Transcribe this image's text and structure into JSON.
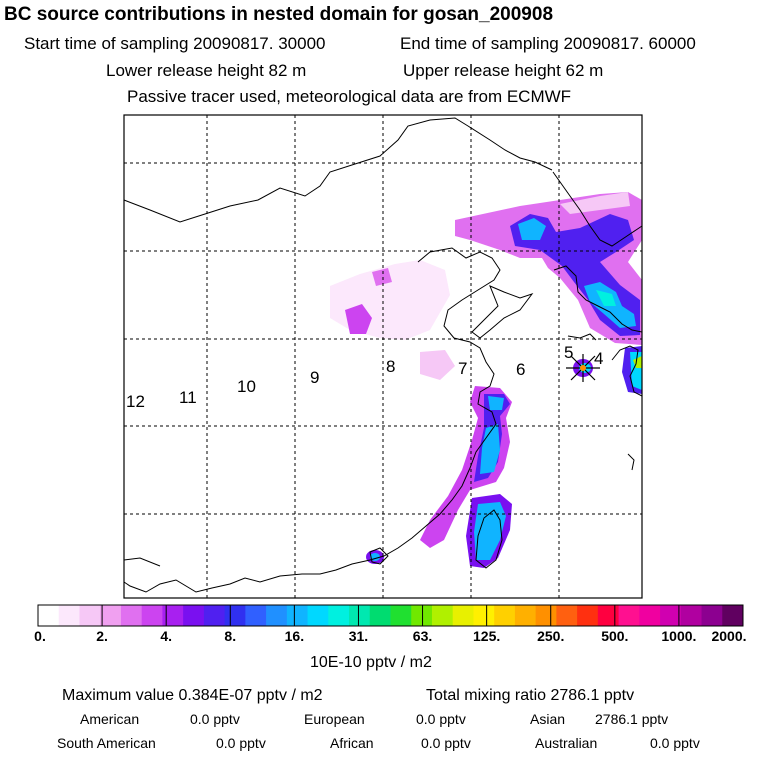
{
  "header": {
    "title": "BC  source contributions in nested domain for gosan_200908",
    "start_time": "Start time of sampling 20090817. 30000",
    "end_time": "End time of sampling 20090817. 60000",
    "lower_height": "Lower release height   82 m",
    "upper_height": "Upper release height   62 m",
    "note": "Passive tracer used, meteorological data are from ECMWF"
  },
  "map": {
    "time_markers": [
      "12",
      "11",
      "10",
      "9",
      "8",
      "7",
      "6",
      "5",
      "4"
    ],
    "marker_symbol": "receptor-star"
  },
  "colorbar": {
    "labels": [
      "0.",
      "2.",
      "4.",
      "8.",
      "16.",
      "31.",
      "63.",
      "125.",
      "250.",
      "500.",
      "1000.",
      "2000."
    ],
    "colors": [
      "#ffffff",
      "#fce8fc",
      "#f6c8f6",
      "#f0a0f0",
      "#e070f0",
      "#cc44f0",
      "#a820f0",
      "#7a10f0",
      "#5020f0",
      "#3030f0",
      "#3060ff",
      "#2090ff",
      "#10b4ff",
      "#00d8ff",
      "#00f0e0",
      "#00e8b0",
      "#00dc70",
      "#20e030",
      "#70e800",
      "#b0f000",
      "#e8f000",
      "#fff000",
      "#ffd000",
      "#ffb000",
      "#ff9000",
      "#ff6010",
      "#ff3010",
      "#ff0040",
      "#ff1090",
      "#f000a0",
      "#d000b0",
      "#b000a0",
      "#8c0090",
      "#600060"
    ],
    "unit": "10E-10 pptv / m2"
  },
  "summary": {
    "max_value": "Maximum value  0.384E-07 pptv / m2",
    "total_mixing": "Total mixing ratio     2786.1 pptv",
    "american_label": "American",
    "american_value": "0.0 pptv",
    "european_label": "European",
    "european_value": "0.0 pptv",
    "asian_label": "Asian",
    "asian_value": "2786.1 pptv",
    "south_american_label": "South American",
    "south_american_value": "0.0 pptv",
    "african_label": "African",
    "african_value": "0.0 pptv",
    "australian_label": "Australian",
    "australian_value": "0.0 pptv"
  }
}
